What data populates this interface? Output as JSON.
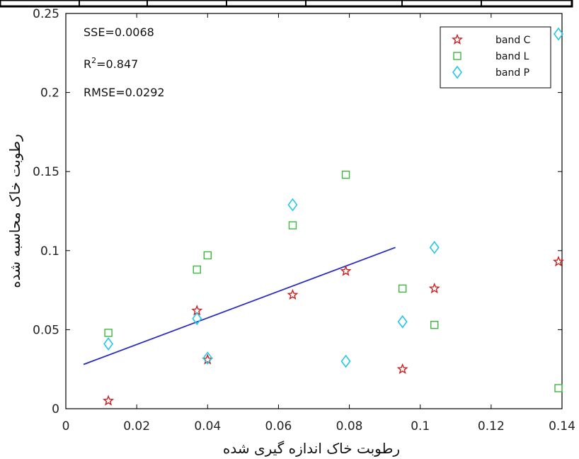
{
  "chart_data": {
    "type": "scatter",
    "title": "",
    "xlabel": "رطوبت خاک اندازه گیری شده",
    "ylabel": "رطوبت خاک محاسبه شده",
    "xlim": [
      0,
      0.14
    ],
    "ylim": [
      0,
      0.25
    ],
    "xticks": [
      0,
      0.02,
      0.04,
      0.06,
      0.08,
      0.1,
      0.12,
      0.14
    ],
    "xtick_labels": [
      "0",
      "0.02",
      "0.04",
      "0.06",
      "0.08",
      "0.1",
      "0.12",
      "0.14"
    ],
    "yticks": [
      0,
      0.05,
      0.1,
      0.15,
      0.2,
      0.25
    ],
    "ytick_labels": [
      "0",
      "0.05",
      "0.1",
      "0.15",
      "0.2",
      "0.25"
    ],
    "grid": false,
    "legend_position": "top-right",
    "annotations": {
      "sse": "SSE=0.0068",
      "r2_prefix": "R",
      "r2_sup": "2",
      "r2_value": "=0.847",
      "rmse": "RMSE=0.0292"
    },
    "series": [
      {
        "name": "band C",
        "marker": "star",
        "color": "#cc1f1f",
        "points": [
          [
            0.012,
            0.005
          ],
          [
            0.037,
            0.062
          ],
          [
            0.04,
            0.031
          ],
          [
            0.064,
            0.072
          ],
          [
            0.079,
            0.087
          ],
          [
            0.095,
            0.025
          ],
          [
            0.104,
            0.076
          ],
          [
            0.139,
            0.093
          ]
        ]
      },
      {
        "name": "band L",
        "marker": "square",
        "color": "#3cb83c",
        "points": [
          [
            0.012,
            0.048
          ],
          [
            0.037,
            0.088
          ],
          [
            0.04,
            0.097
          ],
          [
            0.064,
            0.116
          ],
          [
            0.079,
            0.148
          ],
          [
            0.095,
            0.076
          ],
          [
            0.104,
            0.053
          ],
          [
            0.139,
            0.013
          ]
        ]
      },
      {
        "name": "band P",
        "marker": "diamond",
        "color": "#22c8e6",
        "points": [
          [
            0.012,
            0.041
          ],
          [
            0.037,
            0.057
          ],
          [
            0.04,
            0.032
          ],
          [
            0.064,
            0.129
          ],
          [
            0.079,
            0.03
          ],
          [
            0.095,
            0.055
          ],
          [
            0.104,
            0.102
          ],
          [
            0.139,
            0.237
          ]
        ]
      }
    ],
    "fit_line": {
      "color": "#2b2bc4",
      "points": [
        [
          0.005,
          0.028
        ],
        [
          0.093,
          0.102
        ]
      ]
    }
  }
}
